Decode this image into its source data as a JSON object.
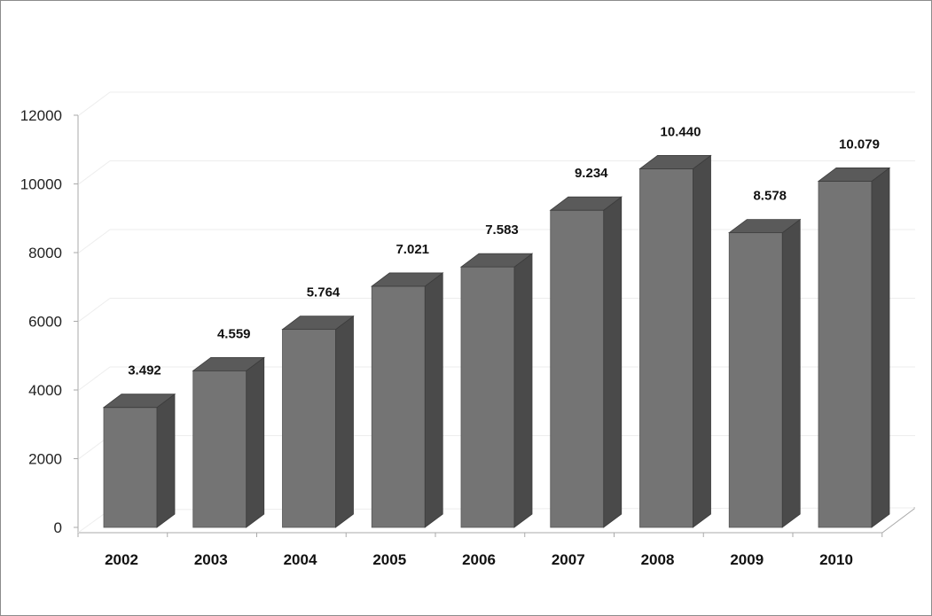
{
  "chart_data": {
    "type": "bar",
    "style": "3d-column",
    "categories": [
      "2002",
      "2003",
      "2004",
      "2005",
      "2006",
      "2007",
      "2008",
      "2009",
      "2010"
    ],
    "values": [
      3492,
      4559,
      5764,
      7021,
      7583,
      9234,
      10440,
      8578,
      10079
    ],
    "data_labels": [
      "3.492",
      "4.559",
      "5.764",
      "7.021",
      "7.583",
      "9.234",
      "10.440",
      "8.578",
      "10.079"
    ],
    "y_ticks": [
      "0",
      "2000",
      "4000",
      "6000",
      "8000",
      "10000",
      "12000"
    ],
    "ylim": [
      0,
      12000
    ],
    "grid": true,
    "legend": "none",
    "colors": {
      "bar_front": "#747474",
      "bar_side": "#4a4a4a",
      "bar_top": "#5a5a5a",
      "gridline": "#ededed",
      "axis": "#aaaaaa"
    }
  }
}
